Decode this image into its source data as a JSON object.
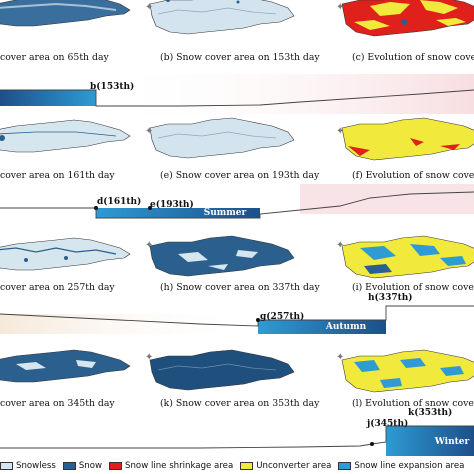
{
  "colors": {
    "snowless": "#d6e6ef",
    "snow": "#2b5f8e",
    "shrinkage": "#e0201b",
    "unconverter": "#f1ea3c",
    "expansion": "#2e9bd3",
    "spring_band": "#f4dede",
    "summer_band": "#eef2f4",
    "autumn_band": "#f6e9da",
    "winter_band": "#eef2f4"
  },
  "rows": [
    {
      "captions": [
        "cover area on 65th day",
        "(b) Snow cover area on 153th day",
        "(c) Evolution of snow cover"
      ],
      "points": [
        {
          "label": "b(153th)"
        }
      ],
      "season": ""
    },
    {
      "captions": [
        "cover area on 161th day",
        "(e) Snow cover area on 193th day",
        "(f) Evolution of snow cover"
      ],
      "points": [
        {
          "label": "d(161th)"
        },
        {
          "label": "e(193th)"
        }
      ],
      "season": "Summer"
    },
    {
      "captions": [
        "cover area on 257th day",
        "(h) Snow cover area on 337th day",
        "(i) Evolution of snow cover"
      ],
      "points": [
        {
          "label": "g(257th)"
        },
        {
          "label": "h(337th)"
        }
      ],
      "season": "Autumn"
    },
    {
      "captions": [
        "cover area on 345th day",
        "(k) Snow cover area on 353th day",
        "(l) Evolution of snow cover"
      ],
      "points": [
        {
          "label": "j(345th)"
        },
        {
          "label": "k(353th)"
        }
      ],
      "season": "Winter"
    }
  ],
  "legend": [
    {
      "label": "Snowless",
      "color": "#d6e6ef"
    },
    {
      "label": "Snow",
      "color": "#2b5f8e"
    },
    {
      "label": "Snow line shrinkage area",
      "color": "#e0201b"
    },
    {
      "label": "Unconverter area",
      "color": "#f1ea3c"
    },
    {
      "label": "Snow line expansion area",
      "color": "#2e9bd3"
    }
  ]
}
